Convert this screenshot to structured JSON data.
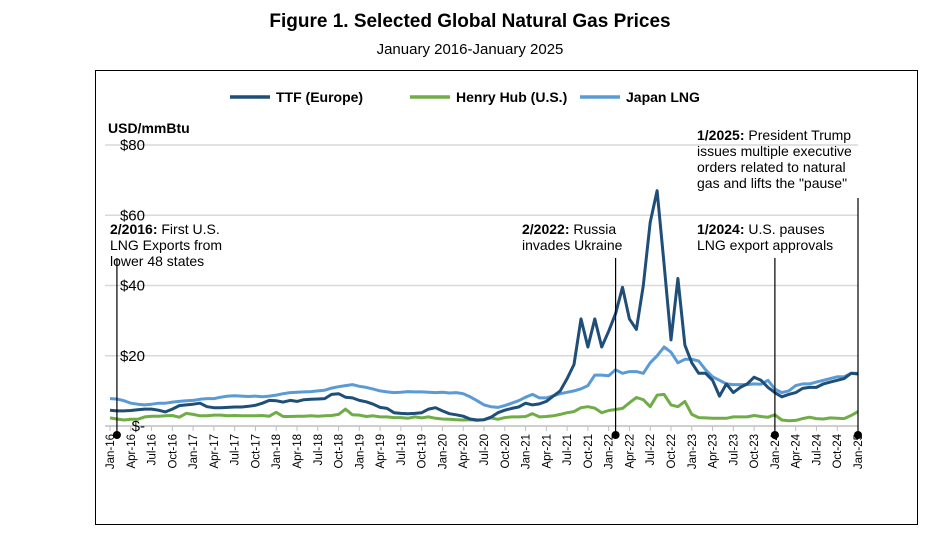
{
  "chart_data": {
    "type": "line",
    "title": "Figure 1. Selected Global Natural Gas Prices",
    "subtitle": "January 2016-January 2025",
    "ylabel": "USD/mmBtu",
    "ylim": [
      0,
      80
    ],
    "yticks": [
      0,
      20,
      40,
      60,
      80
    ],
    "ytick_labels": [
      "$-",
      "$20",
      "$40",
      "$60",
      "$80"
    ],
    "x_start": "Jan-16",
    "x_end": "Jan-25",
    "xtick_labels": [
      "Jan-16",
      "Apr-16",
      "Jul-16",
      "Oct-16",
      "Jan-17",
      "Apr-17",
      "Jul-17",
      "Oct-17",
      "Jan-18",
      "Apr-18",
      "Jul-18",
      "Oct-18",
      "Jan-19",
      "Apr-19",
      "Jul-19",
      "Oct-19",
      "Jan-20",
      "Apr-20",
      "Jul-20",
      "Oct-20",
      "Jan-21",
      "Apr-21",
      "Jul-21",
      "Oct-21",
      "Jan-22",
      "Apr-22",
      "Jul-22",
      "Oct-22",
      "Jan-23",
      "Apr-23",
      "Jul-23",
      "Oct-23",
      "Jan-24",
      "Apr-24",
      "Jul-24",
      "Oct-24",
      "Jan-25"
    ],
    "grid": true,
    "legend": "top",
    "series": [
      {
        "name": "TTF (Europe)",
        "color": "#1f4e79",
        "values": [
          4.5,
          4.3,
          4.3,
          4.4,
          4.6,
          4.8,
          4.8,
          4.5,
          4.0,
          4.8,
          5.8,
          6.0,
          6.2,
          6.5,
          5.5,
          5.2,
          5.2,
          5.3,
          5.4,
          5.4,
          5.6,
          5.9,
          6.5,
          7.3,
          7.2,
          6.8,
          7.3,
          7.0,
          7.5,
          7.6,
          7.7,
          7.8,
          9.0,
          9.2,
          8.2,
          8.0,
          7.3,
          6.9,
          6.2,
          5.3,
          5.0,
          3.8,
          3.6,
          3.5,
          3.6,
          3.8,
          4.8,
          5.2,
          4.3,
          3.5,
          3.2,
          2.8,
          2.0,
          1.7,
          1.8,
          2.5,
          3.8,
          4.5,
          5.0,
          5.4,
          6.5,
          6.0,
          6.3,
          7.0,
          8.5,
          10.0,
          13.5,
          17.5,
          30.5,
          22.5,
          30.5,
          22.5,
          27.0,
          32.0,
          39.5,
          30.5,
          27.5,
          40.0,
          58.0,
          67.0,
          46.0,
          24.5,
          42.0,
          23.0,
          18.0,
          15.0,
          15.0,
          13.0,
          8.5,
          12.0,
          9.5,
          11.0,
          12.0,
          13.9,
          13.0,
          11.0,
          9.5,
          8.3,
          9.0,
          9.5,
          10.7,
          11.0,
          11.0,
          12.0,
          12.5,
          13.0,
          13.5,
          15.0,
          14.8
        ]
      },
      {
        "name": "Henry Hub (U.S.)",
        "color": "#70ad47",
        "values": [
          2.3,
          2.0,
          1.7,
          1.9,
          1.9,
          2.6,
          2.8,
          2.8,
          2.9,
          3.0,
          2.5,
          3.6,
          3.3,
          2.9,
          2.9,
          3.1,
          3.1,
          2.9,
          3.0,
          2.9,
          2.9,
          2.9,
          3.0,
          2.8,
          3.9,
          2.7,
          2.7,
          2.8,
          2.8,
          2.9,
          2.8,
          2.9,
          3.0,
          3.3,
          4.8,
          3.2,
          3.1,
          2.7,
          2.9,
          2.6,
          2.6,
          2.4,
          2.4,
          2.2,
          2.6,
          2.3,
          2.6,
          2.2,
          2.0,
          1.9,
          1.8,
          1.7,
          1.8,
          1.6,
          1.8,
          2.3,
          1.9,
          2.4,
          2.6,
          2.6,
          2.7,
          3.5,
          2.6,
          2.7,
          2.9,
          3.3,
          3.8,
          4.1,
          5.2,
          5.5,
          5.1,
          3.8,
          4.4,
          4.7,
          5.0,
          6.6,
          8.1,
          7.5,
          5.5,
          8.8,
          9.0,
          6.0,
          5.5,
          7.0,
          3.3,
          2.4,
          2.3,
          2.2,
          2.2,
          2.2,
          2.6,
          2.6,
          2.6,
          3.0,
          2.7,
          2.5,
          3.2,
          1.7,
          1.5,
          1.6,
          2.1,
          2.5,
          2.1,
          2.0,
          2.3,
          2.2,
          2.1,
          3.0,
          4.1
        ]
      },
      {
        "name": "Japan LNG",
        "color": "#5b9bd5",
        "values": [
          7.8,
          7.7,
          7.2,
          6.5,
          6.2,
          6.0,
          6.2,
          6.5,
          6.5,
          6.8,
          7.0,
          7.2,
          7.3,
          7.6,
          7.8,
          7.8,
          8.2,
          8.5,
          8.6,
          8.5,
          8.4,
          8.5,
          8.3,
          8.5,
          8.8,
          9.2,
          9.5,
          9.6,
          9.7,
          9.8,
          10.0,
          10.2,
          10.8,
          11.2,
          11.5,
          11.8,
          11.3,
          11.0,
          10.5,
          10.0,
          9.7,
          9.5,
          9.6,
          9.8,
          9.7,
          9.7,
          9.6,
          9.5,
          9.6,
          9.4,
          9.5,
          9.2,
          8.3,
          7.2,
          6.0,
          5.5,
          5.3,
          5.8,
          6.5,
          7.2,
          8.2,
          9.0,
          8.0,
          8.0,
          8.6,
          9.2,
          9.6,
          10.0,
          10.6,
          11.5,
          14.5,
          14.5,
          14.3,
          16.0,
          15.0,
          15.5,
          15.5,
          15.0,
          18.0,
          20.0,
          22.5,
          21.0,
          18.0,
          19.0,
          19.0,
          18.5,
          16.0,
          14.0,
          13.0,
          12.0,
          11.8,
          11.8,
          11.8,
          12.0,
          11.9,
          13.0,
          10.5,
          9.5,
          10.0,
          11.5,
          12.0,
          12.0,
          12.5,
          13.0,
          13.5,
          14.0,
          14.0,
          15.0,
          15.0
        ]
      }
    ],
    "annotations": [
      {
        "date_label": "2/2016:",
        "text_lines": [
          "First U.S.",
          "LNG Exports from",
          "lower 48 states"
        ],
        "month_index": 1
      },
      {
        "date_label": "2/2022:",
        "text_lines": [
          "Russia",
          "invades Ukraine"
        ],
        "month_index": 73
      },
      {
        "date_label": "1/2024:",
        "text_lines": [
          "U.S. pauses",
          "LNG export approvals"
        ],
        "month_index": 96
      },
      {
        "date_label": "1/2025:",
        "text_lines": [
          "President Trump",
          "issues multiple executive",
          "orders related to natural",
          "gas and lifts the \"pause\""
        ],
        "month_index": 108
      }
    ]
  }
}
